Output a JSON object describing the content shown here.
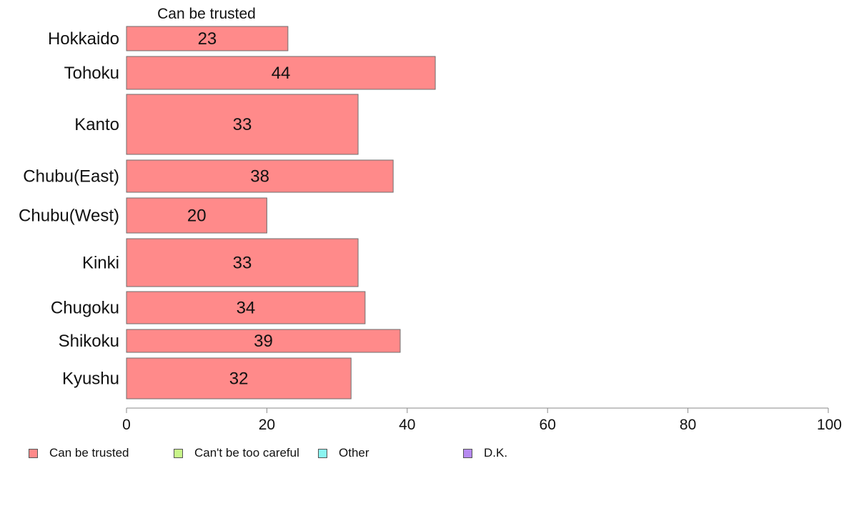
{
  "chart_data": {
    "type": "bar",
    "orientation": "horizontal",
    "series_title": "Can be trusted",
    "categories": [
      "Hokkaido",
      "Tohoku",
      "Kanto",
      "Chubu(East)",
      "Chubu(West)",
      "Kinki",
      "Chugoku",
      "Shikoku",
      "Kyushu"
    ],
    "series": [
      {
        "name": "Can be trusted",
        "color": "#ff8a8a",
        "values": [
          23,
          44,
          33,
          38,
          20,
          33,
          34,
          39,
          32
        ]
      }
    ],
    "bar_labels": [
      "23",
      "44",
      "33",
      "38",
      "20",
      "33",
      "34",
      "39",
      "32"
    ],
    "xlim": [
      0,
      100
    ],
    "xticks": [
      "0",
      "20",
      "40",
      "60",
      "80",
      "100"
    ],
    "grid": false,
    "legend_position": "bottom"
  },
  "legend": [
    {
      "label": "Can be trusted",
      "color": "#ff8a8a"
    },
    {
      "label": "Can't be too careful",
      "color": "#c8f58a"
    },
    {
      "label": "Other",
      "color": "#8af5f0"
    },
    {
      "label": "D.K.",
      "color": "#b68af0"
    }
  ]
}
